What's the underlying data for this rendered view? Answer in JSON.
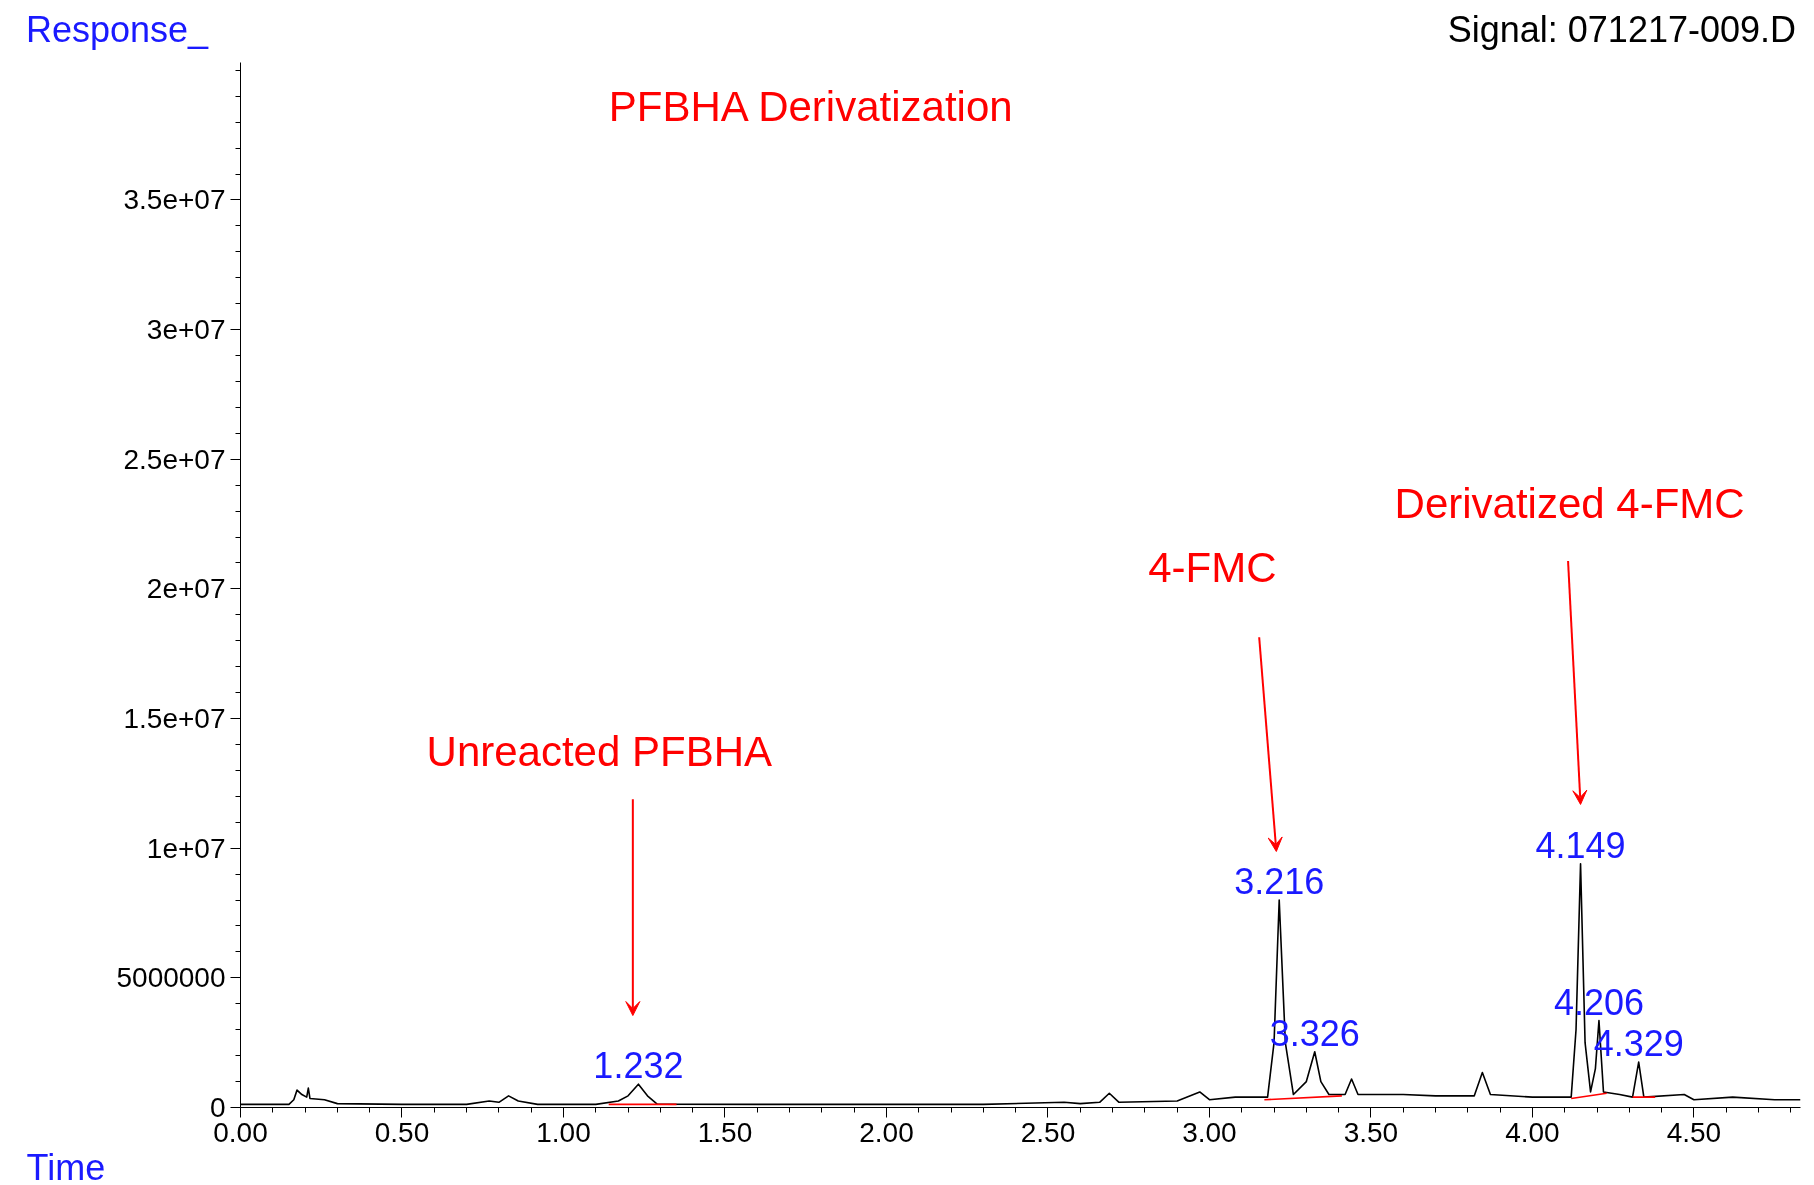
{
  "chart_data": {
    "type": "line",
    "title": "PFBHA  Derivatization",
    "subtitle": "Signal: 071217-009.D",
    "xlabel": "Time",
    "ylabel": "Response_",
    "xlim": [
      0,
      4.83
    ],
    "ylim": [
      0,
      40300000
    ],
    "xticks": [
      {
        "value": 0,
        "label": "0.00"
      },
      {
        "value": 0.5,
        "label": "0.50"
      },
      {
        "value": 1,
        "label": "1.00"
      },
      {
        "value": 1.5,
        "label": "1.50"
      },
      {
        "value": 2,
        "label": "2.00"
      },
      {
        "value": 2.5,
        "label": "2.50"
      },
      {
        "value": 3,
        "label": "3.00"
      },
      {
        "value": 3.5,
        "label": "3.50"
      },
      {
        "value": 4,
        "label": "4.00"
      },
      {
        "value": 4.5,
        "label": "4.50"
      }
    ],
    "yticks": [
      0,
      5000000,
      {
        "value": 10000000,
        "label": "1e+07"
      },
      {
        "value": 15000000,
        "label": "1.5e+07"
      },
      {
        "value": 20000000,
        "label": "2e+07"
      },
      {
        "value": 25000000,
        "label": "2.5e+07"
      },
      {
        "value": 30000000,
        "label": "3e+07"
      },
      {
        "value": 35000000,
        "label": "3.5e+07"
      }
    ],
    "grid": false,
    "marker": "none",
    "line_style": "solid",
    "series": [
      {
        "color": "#000000",
        "x": [
          0,
          0.15,
          0.165,
          0.175,
          0.19,
          0.205,
          0.21,
          0.215,
          0.26,
          0.3,
          0.5,
          0.7,
          0.77,
          0.8,
          0.83,
          0.86,
          0.92,
          1.1,
          1.17,
          1.2,
          1.232,
          1.26,
          1.29,
          1.6,
          2.0,
          2.3,
          2.55,
          2.6,
          2.66,
          2.69,
          2.72,
          2.9,
          2.97,
          3.0,
          3.08,
          3.18,
          3.2,
          3.216,
          3.235,
          3.26,
          3.3,
          3.326,
          3.345,
          3.37,
          3.42,
          3.44,
          3.46,
          3.6,
          3.7,
          3.82,
          3.845,
          3.87,
          4.0,
          4.12,
          4.135,
          4.149,
          4.163,
          4.18,
          4.195,
          4.206,
          4.22,
          4.27,
          4.31,
          4.329,
          4.345,
          4.47,
          4.5,
          4.62,
          4.75,
          4.83
        ],
        "values": [
          120000,
          120000,
          300000,
          670000,
          500000,
          400000,
          750000,
          350000,
          300000,
          150000,
          120000,
          120000,
          250000,
          200000,
          450000,
          250000,
          120000,
          120000,
          250000,
          450000,
          900000,
          450000,
          130000,
          120000,
          120000,
          120000,
          200000,
          150000,
          200000,
          550000,
          200000,
          250000,
          600000,
          300000,
          400000,
          400000,
          2500000,
          8000000,
          2500000,
          500000,
          1000000,
          2150000,
          1000000,
          500000,
          500000,
          1100000,
          500000,
          500000,
          450000,
          450000,
          1350000,
          500000,
          400000,
          400000,
          3000000,
          9400000,
          2500000,
          600000,
          1500000,
          3350000,
          600000,
          500000,
          400000,
          1750000,
          400000,
          500000,
          300000,
          400000,
          300000,
          300000
        ]
      },
      {
        "color": "#ff0000",
        "x": [
          1.14,
          1.35
        ],
        "values": [
          120000,
          120000
        ]
      },
      {
        "color": "#ff0000",
        "x": [
          3.17,
          3.41
        ],
        "values": [
          300000,
          450000
        ]
      },
      {
        "color": "#ff0000",
        "x": [
          4.12,
          4.23
        ],
        "values": [
          350000,
          550000
        ]
      },
      {
        "color": "#ff0000",
        "x": [
          4.31,
          4.38
        ],
        "values": [
          400000,
          400000
        ]
      }
    ],
    "annotations": [
      "Unreacted PFBHA",
      "4-FMC",
      "Derivatized 4-FMC",
      {
        "text": "1.232",
        "x": 1.232,
        "y": 900000
      },
      {
        "text": "3.216",
        "x": 3.216,
        "y": 8000000
      },
      {
        "text": "3.326",
        "x": 3.326,
        "y": 2150000
      },
      {
        "text": "4.149",
        "x": 4.149,
        "y": 9400000
      },
      {
        "text": "4.206",
        "x": 4.206,
        "y": 3350000
      },
      {
        "text": "4.329",
        "x": 4.329,
        "y": 1750000
      }
    ]
  }
}
